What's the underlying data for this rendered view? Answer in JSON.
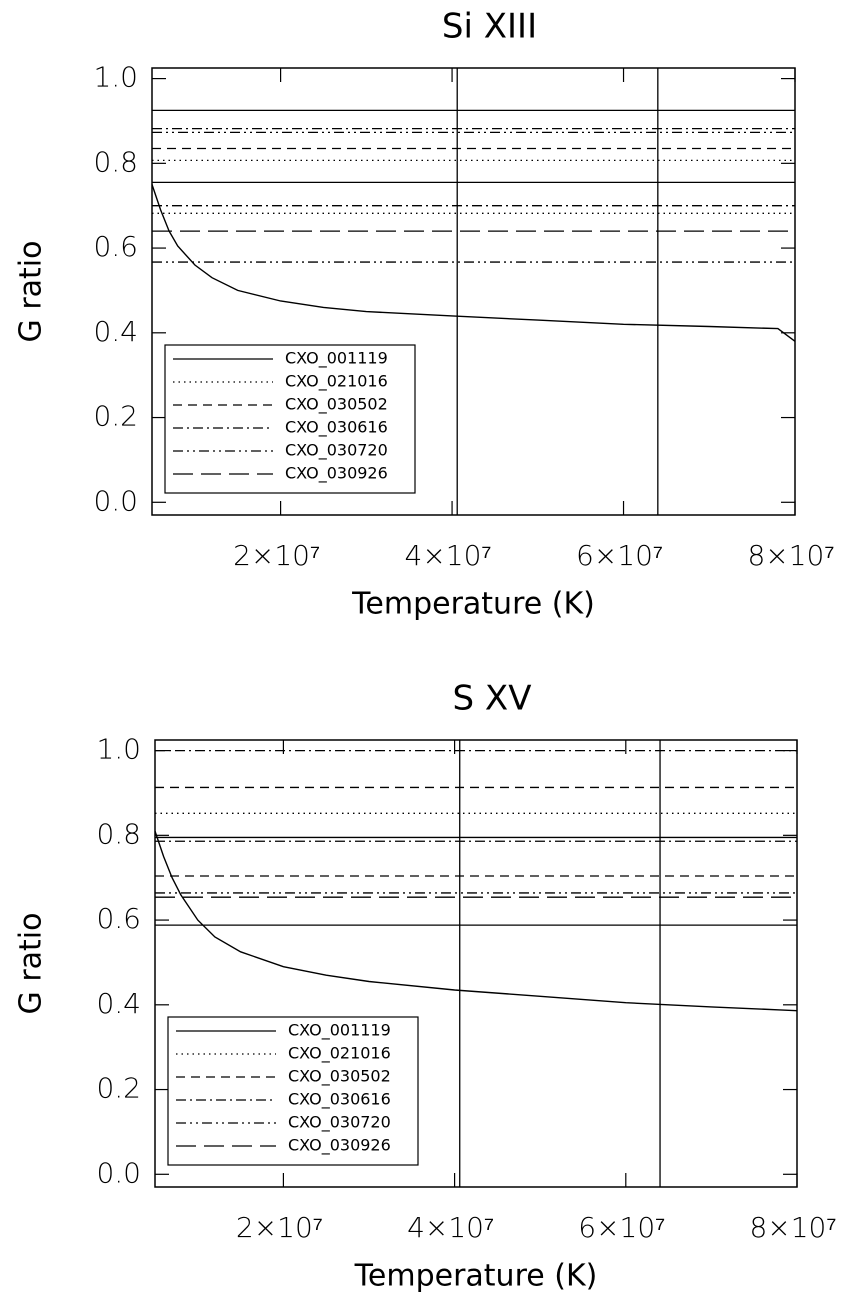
{
  "chart_data": [
    {
      "type": "line",
      "title": "Si XIII",
      "xlabel": "Temperature (K)",
      "ylabel": "G ratio",
      "xlim": [
        5000000,
        80000000
      ],
      "ylim": [
        -0.03,
        1.025
      ],
      "xticks": [
        {
          "value": 20000000,
          "label": "2×10⁷"
        },
        {
          "value": 40000000,
          "label": "4×10⁷"
        },
        {
          "value": 60000000,
          "label": "6×10⁷"
        },
        {
          "value": 80000000,
          "label": "8×10⁷"
        }
      ],
      "yticks": [
        {
          "value": 0,
          "label": "0.0"
        },
        0.2,
        0.4,
        0.6,
        0.8,
        {
          "value": 1,
          "label": "1.0"
        }
      ],
      "vlines": [
        40600000,
        64000000
      ],
      "curve": {
        "x": [
          5000000,
          6000000,
          7000000,
          8000000,
          10000000,
          12000000,
          15000000,
          20000000,
          25000000,
          30000000,
          40000000,
          50000000,
          60000000,
          70000000,
          78000000,
          80000000
        ],
        "values": [
          0.75,
          0.69,
          0.64,
          0.605,
          0.56,
          0.53,
          0.5,
          0.475,
          0.46,
          0.45,
          0.44,
          0.43,
          0.42,
          0.415,
          0.41,
          0.38
        ]
      },
      "series": [
        {
          "name": "CXO_001119",
          "style": "solid",
          "color": "#000000",
          "values": [
            0.925,
            0.755
          ]
        },
        {
          "name": "CXO_021016",
          "style": "dotted",
          "color": "#000000",
          "values": [
            0.807,
            0.682
          ]
        },
        {
          "name": "CXO_030502",
          "style": "dashed",
          "color": "#000000",
          "values": [
            0.835
          ]
        },
        {
          "name": "CXO_030616",
          "style": "dashdot",
          "color": "#000000",
          "values": [
            0.882,
            0.7
          ]
        },
        {
          "name": "CXO_030720",
          "style": "dashdotdot",
          "color": "#000000",
          "values": [
            0.873,
            0.567
          ]
        },
        {
          "name": "CXO_030926",
          "style": "longdash",
          "color": "#000000",
          "values": [
            0.64
          ]
        }
      ]
    },
    {
      "type": "line",
      "title": "S XV",
      "xlabel": "Temperature (K)",
      "ylabel": "G ratio",
      "xlim": [
        5000000,
        80000000
      ],
      "ylim": [
        -0.03,
        1.025
      ],
      "xticks": [
        {
          "value": 20000000,
          "label": "2×10⁷"
        },
        {
          "value": 40000000,
          "label": "4×10⁷"
        },
        {
          "value": 60000000,
          "label": "6×10⁷"
        },
        {
          "value": 80000000,
          "label": "8×10⁷"
        }
      ],
      "yticks": [
        {
          "value": 0,
          "label": "0.0"
        },
        0.2,
        0.4,
        0.6,
        0.8,
        {
          "value": 1,
          "label": "1.0"
        }
      ],
      "vlines": [
        40600000,
        64000000
      ],
      "curve": {
        "x": [
          5000000,
          6000000,
          7000000,
          8000000,
          10000000,
          12000000,
          15000000,
          20000000,
          25000000,
          30000000,
          40000000,
          50000000,
          60000000,
          70000000,
          78000000,
          80000000
        ],
        "values": [
          0.81,
          0.75,
          0.7,
          0.66,
          0.6,
          0.56,
          0.525,
          0.49,
          0.47,
          0.455,
          0.435,
          0.42,
          0.405,
          0.395,
          0.388,
          0.386
        ]
      },
      "series": [
        {
          "name": "CXO_001119",
          "style": "solid",
          "color": "#000000",
          "values": [
            0.795,
            0.588
          ]
        },
        {
          "name": "CXO_021016",
          "style": "dotted",
          "color": "#000000",
          "values": [
            0.852
          ]
        },
        {
          "name": "CXO_030502",
          "style": "dashed",
          "color": "#000000",
          "values": [
            0.913,
            0.704
          ]
        },
        {
          "name": "CXO_030616",
          "style": "dashdot",
          "color": "#000000",
          "values": [
            1.0,
            0.786
          ]
        },
        {
          "name": "CXO_030720",
          "style": "dashdotdot",
          "color": "#000000",
          "values": [
            0.664
          ]
        },
        {
          "name": "CXO_030926",
          "style": "longdash",
          "color": "#000000",
          "values": [
            0.654
          ]
        }
      ]
    }
  ]
}
